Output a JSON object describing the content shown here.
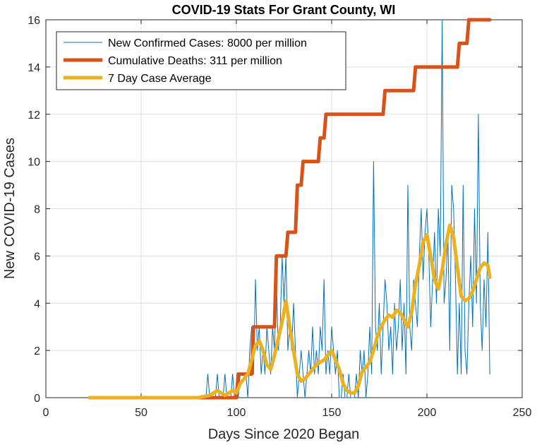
{
  "chart_data": {
    "type": "line",
    "title": "COVID-19 Stats For Grant County, WI",
    "xlabel": "Days Since 2020 Began",
    "ylabel": "New COVID-19 Cases",
    "xlim": [
      0,
      250
    ],
    "ylim": [
      0,
      16
    ],
    "xticks": [
      0,
      50,
      100,
      150,
      200,
      250
    ],
    "yticks": [
      0,
      2,
      4,
      6,
      8,
      10,
      12,
      14,
      16
    ],
    "grid": true,
    "legend_position": "top-left",
    "series": [
      {
        "name": "New Confirmed Cases: 8000 per million",
        "color": "#0072BD",
        "line_width": 1,
        "x": [
          23,
          30,
          40,
          50,
          60,
          70,
          80,
          84,
          85,
          86,
          87,
          88,
          89,
          90,
          91,
          92,
          93,
          94,
          95,
          96,
          97,
          98,
          99,
          100,
          101,
          102,
          103,
          104,
          105,
          106,
          107,
          108,
          109,
          110,
          111,
          112,
          113,
          114,
          115,
          116,
          117,
          118,
          119,
          120,
          121,
          122,
          123,
          124,
          125,
          126,
          127,
          128,
          129,
          130,
          131,
          132,
          133,
          134,
          135,
          136,
          137,
          138,
          139,
          140,
          141,
          142,
          143,
          144,
          145,
          146,
          147,
          148,
          149,
          150,
          151,
          152,
          153,
          154,
          155,
          156,
          157,
          158,
          159,
          160,
          161,
          162,
          163,
          164,
          165,
          166,
          167,
          168,
          169,
          170,
          171,
          172,
          173,
          174,
          175,
          176,
          177,
          178,
          179,
          180,
          181,
          182,
          183,
          184,
          185,
          186,
          187,
          188,
          189,
          190,
          191,
          192,
          193,
          194,
          195,
          196,
          197,
          198,
          199,
          200,
          201,
          202,
          203,
          204,
          205,
          206,
          207,
          208,
          209,
          210,
          211,
          212,
          213,
          214,
          215,
          216,
          217,
          218,
          219,
          220,
          221,
          222,
          223,
          224,
          225,
          226,
          227,
          228,
          229,
          230,
          231,
          232,
          233
        ],
        "y": [
          0,
          0,
          0,
          0,
          0,
          0,
          0,
          0,
          1,
          0,
          0,
          0,
          0,
          1,
          0,
          0,
          0,
          1,
          0,
          0,
          0,
          1,
          0,
          0,
          0,
          1,
          1,
          1,
          1,
          0,
          2,
          3,
          1,
          5,
          2,
          3,
          1,
          2,
          1,
          3,
          2,
          1,
          3,
          2,
          5,
          2,
          3,
          6,
          4,
          6,
          2,
          3,
          2,
          4,
          2,
          0,
          1,
          2,
          1,
          0,
          1,
          2,
          1,
          3,
          1,
          2,
          1,
          3,
          2,
          5,
          1,
          2,
          1,
          3,
          2,
          1,
          2,
          0,
          0,
          1,
          0,
          0,
          1,
          0,
          0,
          0,
          1,
          0,
          2,
          1,
          2,
          0,
          1,
          3,
          1,
          10,
          3,
          2,
          4,
          1,
          3,
          5,
          4,
          2,
          3,
          1,
          4,
          2,
          3,
          5,
          2,
          4,
          1,
          9,
          3,
          2,
          5,
          4,
          3,
          6,
          8,
          5,
          7,
          8,
          6,
          3,
          5,
          7,
          4,
          8,
          6,
          16,
          4,
          5,
          7,
          2,
          9,
          8,
          5,
          1,
          4,
          1,
          9,
          2,
          1,
          4,
          6,
          3,
          8,
          4,
          12,
          4,
          2,
          5,
          3,
          7,
          1
        ],
        "_note_y": "approximate daily values read from chart"
      },
      {
        "name": "Cumulative Deaths: 311 per million",
        "color": "#D95319",
        "line_width": 5,
        "x": [
          23,
          100,
          101,
          108,
          109,
          114,
          115,
          120,
          121,
          126,
          127,
          131,
          132,
          134,
          135,
          143,
          144,
          146,
          147,
          177,
          178,
          193,
          194,
          216,
          217,
          221,
          222,
          225,
          226,
          233
        ],
        "y": [
          0,
          0,
          1,
          1,
          3,
          3,
          3,
          3,
          6,
          6,
          7,
          7,
          9,
          9,
          10,
          10,
          11,
          11,
          12,
          12,
          13,
          13,
          14,
          14,
          15,
          15,
          16,
          16,
          16,
          16
        ]
      },
      {
        "name": "7 Day Case Average",
        "color": "#EDB120",
        "line_width": 5,
        "x": [
          23,
          30,
          40,
          50,
          60,
          70,
          80,
          86,
          88,
          90,
          92,
          94,
          96,
          98,
          100,
          102,
          104,
          106,
          108,
          110,
          112,
          114,
          116,
          118,
          120,
          122,
          124,
          126,
          128,
          130,
          132,
          134,
          136,
          138,
          140,
          142,
          144,
          146,
          148,
          150,
          152,
          154,
          156,
          158,
          160,
          162,
          164,
          166,
          168,
          170,
          172,
          174,
          176,
          178,
          180,
          182,
          184,
          186,
          188,
          190,
          192,
          194,
          196,
          198,
          200,
          202,
          204,
          206,
          208,
          210,
          212,
          214,
          216,
          218,
          220,
          222,
          224,
          226,
          228,
          230,
          232,
          233
        ],
        "y": [
          0,
          0,
          0,
          0,
          0,
          0,
          0,
          0.1,
          0.2,
          0.3,
          0.2,
          0.1,
          0.2,
          0.3,
          0.2,
          0.6,
          0.8,
          1.0,
          1.6,
          2.2,
          2.4,
          2.0,
          1.4,
          1.2,
          1.8,
          2.5,
          3.2,
          4.1,
          3.0,
          2.0,
          1.0,
          0.7,
          0.8,
          1.0,
          1.2,
          1.4,
          1.5,
          1.6,
          1.8,
          2.0,
          1.6,
          1.2,
          0.6,
          0.3,
          0.2,
          0.2,
          0.5,
          1.1,
          1.3,
          1.5,
          2.0,
          2.6,
          3.0,
          3.3,
          3.5,
          3.4,
          3.7,
          3.6,
          3.3,
          3.0,
          3.6,
          4.8,
          5.6,
          6.6,
          6.9,
          6.0,
          5.0,
          4.6,
          5.4,
          6.5,
          7.3,
          6.8,
          5.5,
          4.3,
          4.1,
          4.2,
          4.5,
          5.0,
          5.5,
          5.7,
          5.6,
          5.1
        ]
      }
    ]
  }
}
